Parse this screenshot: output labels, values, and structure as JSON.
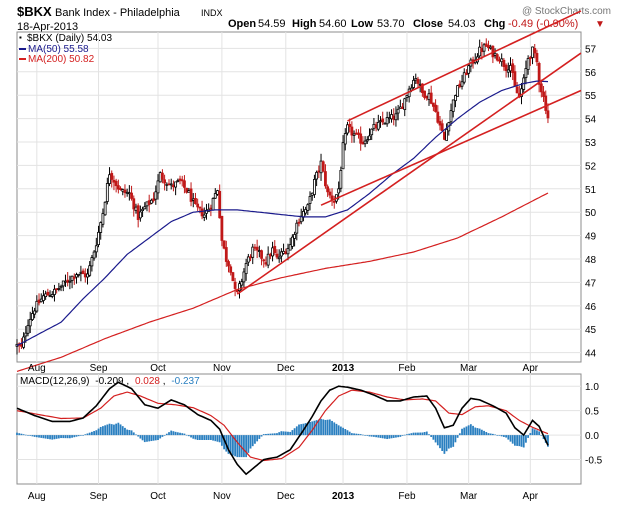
{
  "header": {
    "symbol": "$BKX",
    "name": "Bank Index - Philadelphia",
    "exchange": "INDX",
    "watermark": "@ StockCharts.com",
    "date": "18-Apr-2013",
    "open_label": "Open",
    "open": "54.59",
    "high_label": "High",
    "high": "54.60",
    "low_label": "Low",
    "low": "53.70",
    "close_label": "Close",
    "close": "54.03",
    "chg_label": "Chg",
    "chg": "-0.49 (-0.90%)",
    "chg_arrow": "▼"
  },
  "legend": [
    {
      "label": "$BKX (Daily) 54.03",
      "color": "#000000"
    },
    {
      "label": "MA(50) 55.58",
      "color": "#1a1a8c"
    },
    {
      "label": "MA(200) 50.82",
      "color": "#d42020"
    }
  ],
  "macd_legend": {
    "label": "MACD(12,26,9)",
    "v1": "-0.209",
    "v1_color": "#000000",
    "v2": "0.028",
    "v2_color": "#d42020",
    "v3": "-0.237",
    "v3_color": "#2a7fc0"
  },
  "colors": {
    "up": "#000000",
    "down": "#c01818",
    "ma50": "#1a1a8c",
    "ma200": "#d42020",
    "trend": "#d42020",
    "hist": "#2a7fc0",
    "grid": "#e3e3e3"
  },
  "chart_data": [
    {
      "type": "candlestick",
      "title": "$BKX Bank Index - Philadelphia INDX",
      "y_axis_side": "right",
      "y_ticks": [
        44,
        45,
        46,
        47,
        48,
        49,
        50,
        51,
        52,
        53,
        54,
        55,
        56,
        57
      ],
      "ylim": [
        43.6,
        57.7
      ],
      "x_months": [
        {
          "label": "Aug",
          "day": 9
        },
        {
          "label": "Sep",
          "day": 37
        },
        {
          "label": "Oct",
          "day": 64
        },
        {
          "label": "Nov",
          "day": 93
        },
        {
          "label": "Dec",
          "day": 122
        },
        {
          "label": "2013",
          "day": 148,
          "bold": true
        },
        {
          "label": "Feb",
          "day": 177
        },
        {
          "label": "Mar",
          "day": 205
        },
        {
          "label": "Apr",
          "day": 233
        }
      ],
      "xlim": [
        0,
        256
      ],
      "close_anchors": [
        [
          0,
          44.3
        ],
        [
          2,
          44.2
        ],
        [
          5,
          45.3
        ],
        [
          8,
          45.9
        ],
        [
          12,
          46.4
        ],
        [
          17,
          46.6
        ],
        [
          22,
          47.0
        ],
        [
          27,
          47.4
        ],
        [
          32,
          47.3
        ],
        [
          36,
          48.7
        ],
        [
          39,
          50.0
        ],
        [
          42,
          51.7
        ],
        [
          47,
          50.9
        ],
        [
          51,
          50.8
        ],
        [
          55,
          49.8
        ],
        [
          58,
          50.2
        ],
        [
          62,
          50.6
        ],
        [
          65,
          51.6
        ],
        [
          70,
          51.1
        ],
        [
          74,
          51.3
        ],
        [
          78,
          50.8
        ],
        [
          81,
          50.2
        ],
        [
          85,
          49.9
        ],
        [
          88,
          50.3
        ],
        [
          91,
          51.0
        ],
        [
          93,
          48.8
        ],
        [
          95,
          48.0
        ],
        [
          97,
          47.6
        ],
        [
          99,
          46.6
        ],
        [
          100,
          46.5
        ],
        [
          102,
          47.1
        ],
        [
          104,
          47.8
        ],
        [
          107,
          48.4
        ],
        [
          110,
          48.2
        ],
        [
          113,
          47.9
        ],
        [
          116,
          48.4
        ],
        [
          118,
          48.0
        ],
        [
          121,
          48.3
        ],
        [
          124,
          48.6
        ],
        [
          127,
          49.5
        ],
        [
          129,
          49.9
        ],
        [
          132,
          50.2
        ],
        [
          135,
          51.3
        ],
        [
          138,
          52.1
        ],
        [
          141,
          50.8
        ],
        [
          144,
          50.5
        ],
        [
          146,
          51.0
        ],
        [
          148,
          52.8
        ],
        [
          150,
          53.6
        ],
        [
          153,
          53.3
        ],
        [
          157,
          53.0
        ],
        [
          162,
          53.6
        ],
        [
          167,
          53.9
        ],
        [
          172,
          54.1
        ],
        [
          175,
          54.6
        ],
        [
          178,
          55.3
        ],
        [
          181,
          55.8
        ],
        [
          184,
          55.1
        ],
        [
          187,
          55.0
        ],
        [
          190,
          54.3
        ],
        [
          193,
          53.4
        ],
        [
          194,
          53.1
        ],
        [
          196,
          54.0
        ],
        [
          199,
          55.1
        ],
        [
          202,
          55.6
        ],
        [
          205,
          56.2
        ],
        [
          208,
          56.6
        ],
        [
          210,
          56.9
        ],
        [
          213,
          57.1
        ],
        [
          216,
          56.8
        ],
        [
          219,
          56.6
        ],
        [
          222,
          56.2
        ],
        [
          224,
          56.3
        ],
        [
          226,
          55.3
        ],
        [
          228,
          54.9
        ],
        [
          230,
          55.6
        ],
        [
          232,
          56.6
        ],
        [
          234,
          56.9
        ],
        [
          236,
          56.4
        ],
        [
          237,
          55.6
        ],
        [
          239,
          54.9
        ],
        [
          240,
          54.5
        ],
        [
          241,
          54.03
        ]
      ],
      "ma50_anchors": [
        [
          0,
          44.3
        ],
        [
          10,
          44.8
        ],
        [
          20,
          45.3
        ],
        [
          30,
          46.3
        ],
        [
          40,
          47.2
        ],
        [
          50,
          48.2
        ],
        [
          60,
          48.9
        ],
        [
          70,
          49.6
        ],
        [
          80,
          50.0
        ],
        [
          90,
          50.1
        ],
        [
          100,
          50.1
        ],
        [
          110,
          50.0
        ],
        [
          120,
          49.9
        ],
        [
          130,
          49.8
        ],
        [
          140,
          49.8
        ],
        [
          150,
          50.1
        ],
        [
          160,
          50.8
        ],
        [
          170,
          51.6
        ],
        [
          180,
          52.3
        ],
        [
          190,
          53.2
        ],
        [
          200,
          54.0
        ],
        [
          210,
          54.7
        ],
        [
          220,
          55.2
        ],
        [
          230,
          55.5
        ],
        [
          236,
          55.6
        ],
        [
          241,
          55.58
        ]
      ],
      "ma200_anchors": [
        [
          0,
          43.2
        ],
        [
          20,
          43.8
        ],
        [
          40,
          44.6
        ],
        [
          60,
          45.3
        ],
        [
          80,
          45.9
        ],
        [
          100,
          46.7
        ],
        [
          120,
          47.2
        ],
        [
          140,
          47.6
        ],
        [
          160,
          47.9
        ],
        [
          180,
          48.3
        ],
        [
          200,
          48.9
        ],
        [
          220,
          49.8
        ],
        [
          241,
          50.82
        ]
      ],
      "trendlines": [
        {
          "from": [
            100,
            46.5
          ],
          "to": [
            256,
            56.8
          ]
        },
        {
          "from": [
            138,
            50.3
          ],
          "to": [
            256,
            55.2
          ]
        },
        {
          "from": [
            150,
            53.9
          ],
          "to": [
            256,
            58.6
          ]
        }
      ]
    },
    {
      "type": "macd",
      "title": "MACD(12,26,9)",
      "y_axis_side": "right",
      "y_ticks": [
        -0.5,
        0.0,
        0.5,
        1.0
      ],
      "ylim": [
        -1.0,
        1.25
      ],
      "macd_anchors": [
        [
          0,
          0.55
        ],
        [
          8,
          0.4
        ],
        [
          16,
          0.28
        ],
        [
          24,
          0.28
        ],
        [
          30,
          0.35
        ],
        [
          36,
          0.6
        ],
        [
          42,
          0.95
        ],
        [
          46,
          1.08
        ],
        [
          52,
          0.95
        ],
        [
          58,
          0.62
        ],
        [
          64,
          0.55
        ],
        [
          70,
          0.72
        ],
        [
          76,
          0.62
        ],
        [
          82,
          0.42
        ],
        [
          88,
          0.3
        ],
        [
          92,
          0.12
        ],
        [
          96,
          -0.3
        ],
        [
          100,
          -0.6
        ],
        [
          104,
          -0.8
        ],
        [
          108,
          -0.65
        ],
        [
          112,
          -0.5
        ],
        [
          118,
          -0.45
        ],
        [
          124,
          -0.3
        ],
        [
          130,
          0.1
        ],
        [
          134,
          0.38
        ],
        [
          138,
          0.7
        ],
        [
          142,
          0.92
        ],
        [
          146,
          1.0
        ],
        [
          150,
          0.98
        ],
        [
          156,
          0.92
        ],
        [
          162,
          0.82
        ],
        [
          168,
          0.7
        ],
        [
          174,
          0.7
        ],
        [
          180,
          0.78
        ],
        [
          186,
          0.8
        ],
        [
          190,
          0.55
        ],
        [
          194,
          0.15
        ],
        [
          198,
          0.2
        ],
        [
          202,
          0.55
        ],
        [
          206,
          0.75
        ],
        [
          210,
          0.72
        ],
        [
          216,
          0.6
        ],
        [
          222,
          0.45
        ],
        [
          226,
          0.15
        ],
        [
          230,
          0.0
        ],
        [
          234,
          0.3
        ],
        [
          237,
          0.18
        ],
        [
          241,
          -0.209
        ]
      ],
      "signal_anchors": [
        [
          0,
          0.5
        ],
        [
          10,
          0.42
        ],
        [
          20,
          0.34
        ],
        [
          30,
          0.35
        ],
        [
          38,
          0.55
        ],
        [
          44,
          0.8
        ],
        [
          50,
          0.88
        ],
        [
          56,
          0.8
        ],
        [
          64,
          0.65
        ],
        [
          72,
          0.62
        ],
        [
          80,
          0.56
        ],
        [
          88,
          0.4
        ],
        [
          94,
          0.2
        ],
        [
          100,
          -0.15
        ],
        [
          106,
          -0.45
        ],
        [
          112,
          -0.52
        ],
        [
          120,
          -0.48
        ],
        [
          128,
          -0.25
        ],
        [
          134,
          0.1
        ],
        [
          140,
          0.5
        ],
        [
          146,
          0.8
        ],
        [
          152,
          0.92
        ],
        [
          160,
          0.88
        ],
        [
          168,
          0.78
        ],
        [
          176,
          0.72
        ],
        [
          184,
          0.74
        ],
        [
          190,
          0.7
        ],
        [
          196,
          0.45
        ],
        [
          202,
          0.42
        ],
        [
          208,
          0.58
        ],
        [
          214,
          0.6
        ],
        [
          222,
          0.5
        ],
        [
          228,
          0.3
        ],
        [
          234,
          0.16
        ],
        [
          241,
          0.028
        ]
      ]
    }
  ]
}
